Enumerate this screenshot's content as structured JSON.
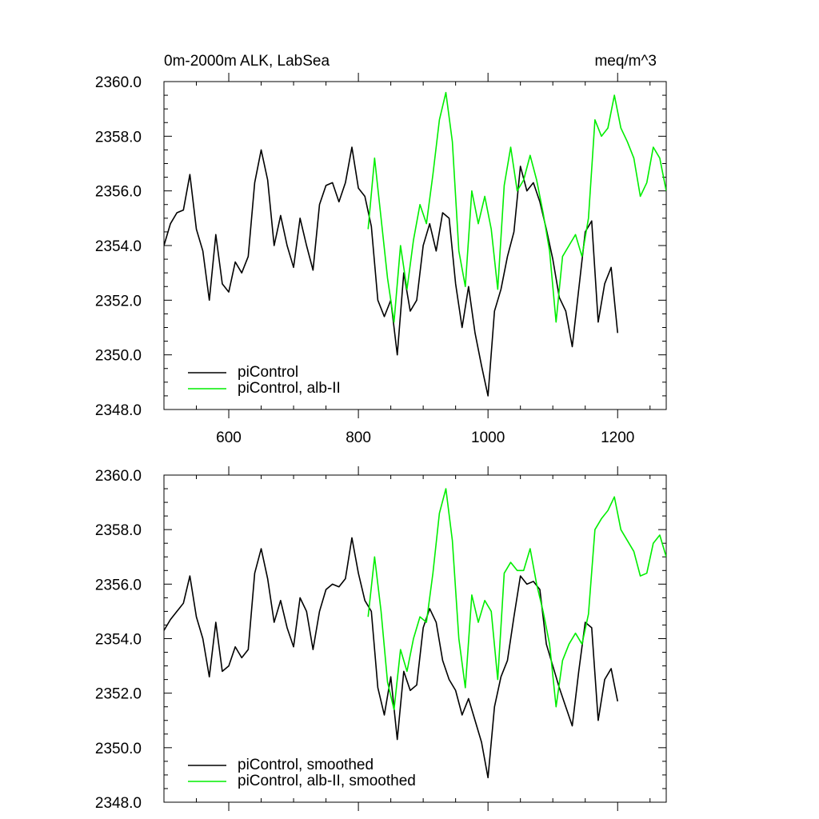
{
  "chart_data": [
    {
      "type": "line",
      "title": "0m-2000m ALK, LabSea",
      "units": "meq/m^3",
      "xlim": [
        500,
        1275
      ],
      "ylim": [
        2348.0,
        2360.0
      ],
      "x_ticks": [
        600,
        800,
        1000,
        1200
      ],
      "x_tick_labels": [
        "600",
        "800",
        "1000",
        "1200"
      ],
      "y_ticks": [
        2348.0,
        2350.0,
        2352.0,
        2354.0,
        2356.0,
        2358.0,
        2360.0
      ],
      "y_tick_labels": [
        "2348.0",
        "2350.0",
        "2352.0",
        "2354.0",
        "2356.0",
        "2358.0",
        "2360.0"
      ],
      "grid": false,
      "legend_position": "bottom-left",
      "series": [
        {
          "name": "piControl",
          "color": "#000000",
          "x": [
            500,
            510,
            520,
            530,
            540,
            550,
            560,
            570,
            580,
            590,
            600,
            610,
            620,
            630,
            640,
            650,
            660,
            670,
            680,
            690,
            700,
            710,
            720,
            730,
            740,
            750,
            760,
            770,
            780,
            790,
            800,
            810,
            820,
            830,
            840,
            850,
            860,
            870,
            880,
            890,
            900,
            910,
            920,
            930,
            940,
            950,
            960,
            970,
            980,
            990,
            1000,
            1010,
            1020,
            1030,
            1040,
            1050,
            1060,
            1070,
            1080,
            1090,
            1100,
            1110,
            1120,
            1130,
            1140,
            1150,
            1160,
            1170,
            1180,
            1190,
            1200
          ],
          "y": [
            2354.0,
            2354.8,
            2355.2,
            2355.3,
            2356.6,
            2354.6,
            2353.8,
            2352.0,
            2354.4,
            2352.6,
            2352.3,
            2353.4,
            2353.0,
            2353.6,
            2356.3,
            2357.5,
            2356.4,
            2354.0,
            2355.1,
            2354.0,
            2353.2,
            2355.0,
            2354.0,
            2353.1,
            2355.5,
            2356.2,
            2356.3,
            2355.6,
            2356.3,
            2357.6,
            2356.1,
            2355.8,
            2354.7,
            2352.0,
            2351.4,
            2352.0,
            2350.0,
            2353.0,
            2351.6,
            2352.0,
            2354.0,
            2354.8,
            2353.8,
            2355.2,
            2355.0,
            2352.6,
            2351.0,
            2352.5,
            2350.8,
            2349.6,
            2348.5,
            2351.6,
            2352.4,
            2353.6,
            2354.5,
            2356.9,
            2356.0,
            2356.3,
            2355.6,
            2354.6,
            2353.5,
            2352.1,
            2351.6,
            2350.3,
            2352.4,
            2354.5,
            2354.9,
            2351.2,
            2352.6,
            2353.2,
            2350.8
          ]
        },
        {
          "name": "piControl, alb-II",
          "color": "#00ee00",
          "x": [
            815,
            825,
            835,
            845,
            855,
            865,
            875,
            885,
            895,
            905,
            915,
            925,
            935,
            945,
            955,
            965,
            975,
            985,
            995,
            1005,
            1015,
            1025,
            1035,
            1045,
            1055,
            1065,
            1075,
            1085,
            1095,
            1105,
            1115,
            1125,
            1135,
            1145,
            1155,
            1165,
            1175,
            1185,
            1195,
            1205,
            1215,
            1225,
            1235,
            1245,
            1255,
            1265,
            1275
          ],
          "y": [
            2354.6,
            2357.2,
            2355.0,
            2352.8,
            2351.2,
            2354.0,
            2352.4,
            2354.2,
            2355.5,
            2354.8,
            2356.6,
            2358.6,
            2359.6,
            2357.8,
            2353.8,
            2352.5,
            2356.0,
            2354.8,
            2355.8,
            2354.6,
            2352.4,
            2356.2,
            2357.6,
            2356.0,
            2356.4,
            2357.3,
            2356.4,
            2355.2,
            2353.8,
            2351.2,
            2353.6,
            2354.0,
            2354.4,
            2353.6,
            2355.0,
            2358.6,
            2358.0,
            2358.3,
            2359.5,
            2358.3,
            2357.8,
            2357.2,
            2355.8,
            2356.3,
            2357.6,
            2357.2,
            2356.0
          ]
        }
      ]
    },
    {
      "type": "line",
      "xlim": [
        500,
        1275
      ],
      "ylim": [
        2348.0,
        2360.0
      ],
      "x_ticks": [
        600,
        800,
        1000,
        1200
      ],
      "y_ticks": [
        2348.0,
        2350.0,
        2352.0,
        2354.0,
        2356.0,
        2358.0,
        2360.0
      ],
      "y_tick_labels": [
        "2348.0",
        "2350.0",
        "2352.0",
        "2354.0",
        "2356.0",
        "2358.0",
        "2360.0"
      ],
      "grid": false,
      "legend_position": "bottom-left",
      "series": [
        {
          "name": "piControl, smoothed",
          "color": "#000000",
          "x": [
            500,
            510,
            520,
            530,
            540,
            550,
            560,
            570,
            580,
            590,
            600,
            610,
            620,
            630,
            640,
            650,
            660,
            670,
            680,
            690,
            700,
            710,
            720,
            730,
            740,
            750,
            760,
            770,
            780,
            790,
            800,
            810,
            820,
            830,
            840,
            850,
            860,
            870,
            880,
            890,
            900,
            910,
            920,
            930,
            940,
            950,
            960,
            970,
            980,
            990,
            1000,
            1010,
            1020,
            1030,
            1040,
            1050,
            1060,
            1070,
            1080,
            1090,
            1100,
            1110,
            1120,
            1130,
            1140,
            1150,
            1160,
            1170,
            1180,
            1190,
            1200
          ],
          "y": [
            2354.3,
            2354.7,
            2355.0,
            2355.3,
            2356.3,
            2354.8,
            2354.0,
            2352.6,
            2354.6,
            2352.8,
            2353.0,
            2353.7,
            2353.3,
            2353.6,
            2356.4,
            2357.3,
            2356.2,
            2354.6,
            2355.4,
            2354.4,
            2353.7,
            2355.5,
            2355.0,
            2353.6,
            2355.0,
            2355.8,
            2356.0,
            2355.9,
            2356.2,
            2357.7,
            2356.4,
            2355.4,
            2355.0,
            2352.2,
            2351.2,
            2352.6,
            2350.3,
            2352.8,
            2352.1,
            2352.3,
            2354.4,
            2355.1,
            2354.6,
            2353.2,
            2352.5,
            2352.1,
            2351.2,
            2351.8,
            2351.0,
            2350.2,
            2348.9,
            2351.5,
            2352.6,
            2353.2,
            2354.8,
            2356.3,
            2356.0,
            2356.1,
            2355.8,
            2353.8,
            2353.0,
            2352.2,
            2351.5,
            2350.8,
            2352.8,
            2354.6,
            2354.4,
            2351.0,
            2352.5,
            2352.9,
            2351.7
          ]
        },
        {
          "name": "piControl, alb-II, smoothed",
          "color": "#00ee00",
          "x": [
            815,
            825,
            835,
            845,
            855,
            865,
            875,
            885,
            895,
            905,
            915,
            925,
            935,
            945,
            955,
            965,
            975,
            985,
            995,
            1005,
            1015,
            1025,
            1035,
            1045,
            1055,
            1065,
            1075,
            1085,
            1095,
            1105,
            1115,
            1125,
            1135,
            1145,
            1155,
            1165,
            1175,
            1185,
            1195,
            1205,
            1215,
            1225,
            1235,
            1245,
            1255,
            1265,
            1275
          ],
          "y": [
            2354.8,
            2357.0,
            2355.0,
            2352.4,
            2351.4,
            2353.6,
            2352.8,
            2354.0,
            2354.8,
            2354.6,
            2356.4,
            2358.6,
            2359.5,
            2357.6,
            2354.0,
            2352.2,
            2355.6,
            2354.6,
            2355.4,
            2355.0,
            2352.5,
            2356.4,
            2356.8,
            2356.5,
            2356.5,
            2357.3,
            2356.0,
            2355.0,
            2353.8,
            2351.5,
            2353.2,
            2353.8,
            2354.2,
            2353.8,
            2354.9,
            2358.0,
            2358.4,
            2358.7,
            2359.2,
            2358.0,
            2357.6,
            2357.2,
            2356.3,
            2356.4,
            2357.5,
            2357.8,
            2357.0
          ]
        }
      ]
    }
  ]
}
